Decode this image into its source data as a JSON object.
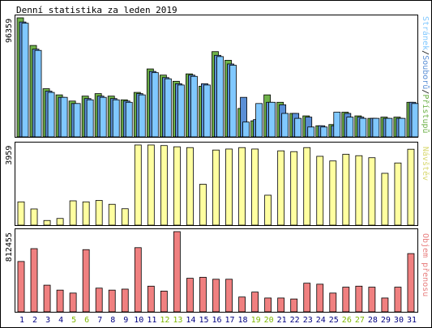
{
  "chart_data": [
    {
      "type": "bar",
      "panel": "hits-files-pages",
      "title": "Denní statistika za leden 2019",
      "ymax_label": "96359",
      "legend": [
        "Přístupů",
        "Souborů",
        "Stránek"
      ],
      "legend_separator": "/",
      "categories": [
        "1",
        "2",
        "3",
        "4",
        "5",
        "6",
        "7",
        "8",
        "9",
        "10",
        "11",
        "12",
        "13",
        "14",
        "15",
        "16",
        "17",
        "18",
        "19",
        "20",
        "21",
        "22",
        "23",
        "24",
        "25",
        "26",
        "27",
        "28",
        "29",
        "30",
        "31"
      ],
      "weekend_days": [
        "5",
        "6",
        "12",
        "13",
        "19",
        "20",
        "26",
        "27"
      ],
      "ylim": [
        0,
        96359
      ],
      "series": [
        {
          "name": "Přístupů",
          "color": "#6fb24a",
          "values": [
            96359,
            74000,
            39000,
            34000,
            29000,
            33000,
            35000,
            33000,
            30000,
            36000,
            55000,
            50000,
            45000,
            51000,
            41000,
            69000,
            62000,
            23000,
            13000,
            34000,
            28000,
            19000,
            17000,
            9000,
            10000,
            20000,
            17000,
            15000,
            16000,
            16000,
            28000
          ]
        },
        {
          "name": "Souborů",
          "color": "#5a8fd6",
          "values": [
            93000,
            71000,
            37000,
            32000,
            27000,
            31000,
            33000,
            31000,
            29000,
            35000,
            53000,
            48000,
            43000,
            50000,
            43000,
            66000,
            59000,
            32000,
            14000,
            28000,
            26000,
            19000,
            16000,
            9000,
            9000,
            19000,
            16000,
            15000,
            15000,
            15000,
            28000
          ]
        },
        {
          "name": "Stránek",
          "color": "#80c8ff",
          "values": [
            92000,
            70000,
            36000,
            32000,
            27000,
            30000,
            32000,
            30000,
            28000,
            34000,
            52000,
            47000,
            42000,
            49000,
            42000,
            65000,
            58000,
            12000,
            27000,
            28000,
            19000,
            15000,
            8000,
            8000,
            20000,
            16000,
            15000,
            15000,
            15000,
            15000,
            27000
          ]
        }
      ]
    },
    {
      "type": "bar",
      "panel": "visits",
      "ymax_label": "3959",
      "legend": [
        "Návštěv"
      ],
      "ylim": [
        0,
        3959
      ],
      "series": [
        {
          "name": "Návštěv",
          "color": "#ffffa0",
          "values": [
            1150,
            800,
            230,
            330,
            1200,
            1150,
            1220,
            1030,
            810,
            3959,
            3959,
            3930,
            3870,
            3830,
            2020,
            3710,
            3760,
            3830,
            3760,
            1480,
            3670,
            3630,
            3830,
            3400,
            3170,
            3500,
            3430,
            3330,
            2560,
            3070,
            3750
          ]
        }
      ]
    },
    {
      "type": "bar",
      "panel": "transfer",
      "ymax_label": "812455",
      "legend": [
        "Objem přenosu"
      ],
      "ylim": [
        0,
        812455
      ],
      "series": [
        {
          "name": "Objem přenosu",
          "color": "#f08080",
          "values": [
            510000,
            640000,
            270000,
            220000,
            190000,
            630000,
            240000,
            220000,
            230000,
            650000,
            260000,
            210000,
            812455,
            340000,
            350000,
            330000,
            330000,
            150000,
            200000,
            140000,
            140000,
            130000,
            290000,
            280000,
            190000,
            250000,
            260000,
            250000,
            140000,
            250000,
            590000
          ]
        }
      ]
    }
  ],
  "colors": {
    "frame": "#000000",
    "weekday_label": "#000080",
    "weekend_label": "#7fb800"
  }
}
